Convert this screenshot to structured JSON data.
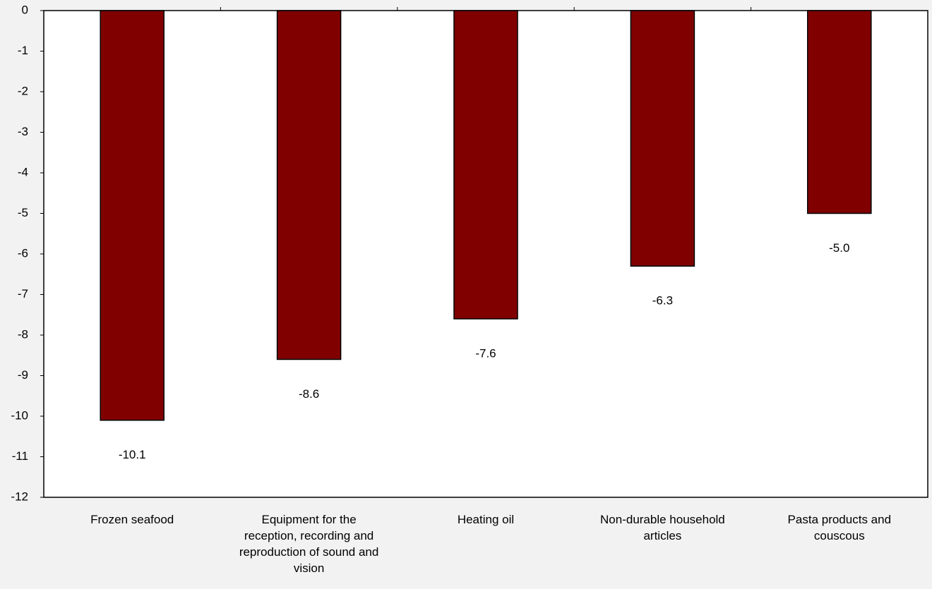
{
  "chart_data": {
    "type": "bar",
    "categories": [
      "Frozen seafood",
      "Equipment for the reception, recording and reproduction of sound and vision",
      "Heating oil",
      "Non-durable household articles",
      "Pasta products and couscous"
    ],
    "values": [
      -10.1,
      -8.6,
      -7.6,
      -6.3,
      -5.0
    ],
    "value_labels": [
      "-10.1",
      "-8.6",
      "-7.6",
      "-6.3",
      "-5.0"
    ],
    "color": "#800000",
    "ylim": [
      -12,
      0
    ],
    "yticks": [
      0,
      -1,
      -2,
      -3,
      -4,
      -5,
      -6,
      -7,
      -8,
      -9,
      -10,
      -11,
      -12
    ],
    "grid": false
  }
}
